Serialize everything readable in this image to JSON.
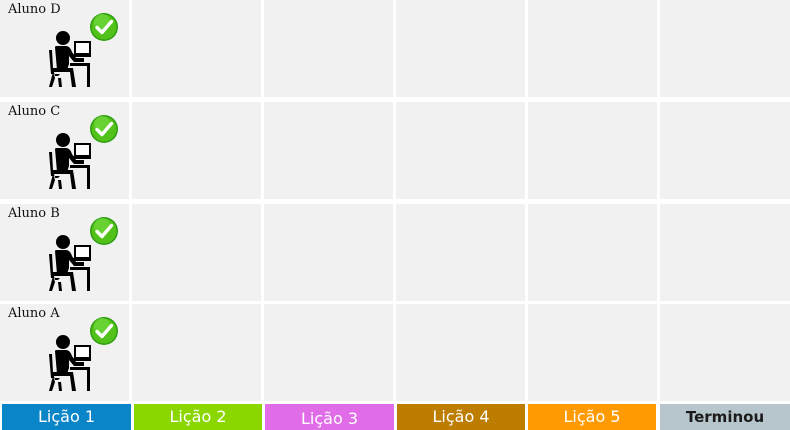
{
  "students": [
    {
      "name": "Aluno D",
      "icon": "student-at-laptop-icon",
      "status_icon": "green-check-icon",
      "completed": true
    },
    {
      "name": "Aluno C",
      "icon": "student-at-laptop-icon",
      "status_icon": "green-check-icon",
      "completed": true
    },
    {
      "name": "Aluno B",
      "icon": "student-at-laptop-icon",
      "status_icon": "green-check-icon",
      "completed": true
    },
    {
      "name": "Aluno A",
      "icon": "student-at-laptop-icon",
      "status_icon": "green-check-icon",
      "completed": true
    }
  ],
  "lessons": [
    {
      "label": "Lição 1",
      "color": "#0a86c8"
    },
    {
      "label": "Lição 2",
      "color": "#8cd600"
    },
    {
      "label": "Lição 3",
      "color": "#e16ce8"
    },
    {
      "label": "Lição 4",
      "color": "#bd7d00"
    },
    {
      "label": "Lição 5",
      "color": "#ff9a00"
    },
    {
      "label": "Terminou",
      "color": "#b7c6cc"
    }
  ],
  "colors": {
    "cell_background": "#f1f1f1",
    "check_green": "#52c21a"
  }
}
